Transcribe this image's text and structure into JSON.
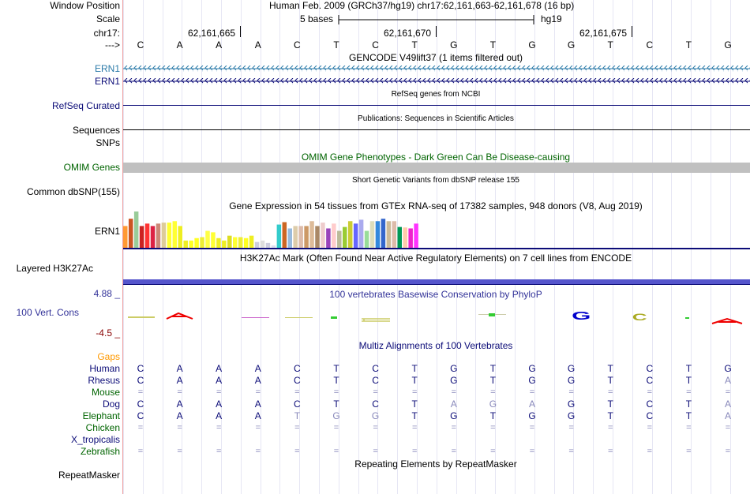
{
  "header": {
    "window_position_label": "Window Position",
    "window_position": "Human Feb. 2009 (GRCh37/hg19)   chr17:62,161,663-62,161,678 (16 bp)",
    "scale_label": "Scale",
    "scale_text": "5 bases",
    "assembly": "hg19",
    "chrom_label": "chr17:",
    "strand_label": "--->",
    "pos1": "62,161,665",
    "pos2": "62,161,670",
    "pos3": "62,161,675"
  },
  "bases": [
    "C",
    "A",
    "A",
    "A",
    "C",
    "T",
    "C",
    "T",
    "G",
    "T",
    "G",
    "G",
    "T",
    "C",
    "T",
    "G"
  ],
  "tracks": {
    "gencode_title": "GENCODE V49lift37 (1 items filtered out)",
    "ern1_a": "ERN1",
    "ern1_b": "ERN1",
    "refseq_title": "RefSeq genes from NCBI",
    "refseq_label": "RefSeq Curated",
    "pubs_title": "Publications: Sequences in Scientific Articles",
    "sequences_label": "Sequences",
    "snps_label": "SNPs",
    "omim_title": "OMIM Gene Phenotypes - Dark Green Can Be Disease-causing",
    "omim_label": "OMIM Genes",
    "dbsnp_title": "Short Genetic Variants from dbSNP release 155",
    "dbsnp_label": "Common dbSNP(155)",
    "gtex_title": "Gene Expression in 54 tissues from GTEx RNA-seq of 17382 samples, 948 donors (V8, Aug 2019)",
    "gtex_label": "ERN1",
    "h3k_title": "H3K27Ac Mark (Often Found Near Active Regulatory Elements) on 7 cell lines from ENCODE",
    "h3k_label": "Layered H3K27Ac",
    "cons_max": "4.88 _",
    "cons_label": "100 Vert. Cons",
    "cons_min": "-4.5 _",
    "cons_title": "100 vertebrates Basewise Conservation by PhyloP",
    "multiz_title": "Multiz Alignments of 100 Vertebrates",
    "gaps_label": "Gaps",
    "repeat_title": "Repeating Elements by RepeatMasker",
    "repeat_label": "RepeatMasker"
  },
  "gtex": {
    "values": [
      0.45,
      0.6,
      0.75,
      0.45,
      0.5,
      0.45,
      0.5,
      0.52,
      0.52,
      0.55,
      0.45,
      0.15,
      0.15,
      0.2,
      0.22,
      0.35,
      0.32,
      0.2,
      0.15,
      0.25,
      0.22,
      0.22,
      0.2,
      0.25,
      0.12,
      0.15,
      0.1,
      0.05,
      0.48,
      0.53,
      0.4,
      0.45,
      0.45,
      0.45,
      0.55,
      0.45,
      0.52,
      0.4,
      0.5,
      0.35,
      0.43,
      0.55,
      0.5,
      0.58,
      0.35,
      0.55,
      0.55,
      0.6,
      0.55,
      0.55,
      0.43,
      0.42,
      0.4,
      0.5
    ],
    "colors": [
      "#ff9933",
      "#cc5522",
      "#99cc99",
      "#cc2222",
      "#ff3333",
      "#dd2244",
      "#cc8877",
      "#ddcc99",
      "#ffff33",
      "#ffff33",
      "#eeee22",
      "#eeee22",
      "#ffff22",
      "#ffff22",
      "#eeee33",
      "#ffff44",
      "#ffff33",
      "#eeee22",
      "#eeee22",
      "#dddd22",
      "#ffff33",
      "#eeee33",
      "#ffff22",
      "#eeee22",
      "#ccccdd",
      "#dddddd",
      "#ccccdd",
      "#ddddee",
      "#33cccc",
      "#cc6622",
      "#99bbdd",
      "#ddccaa",
      "#ddbbaa",
      "#cc9966",
      "#ddbb99",
      "#aa8866",
      "#eecccc",
      "#9944bb",
      "#ffcccc",
      "#bbbb99",
      "#99cc33",
      "#cccc33",
      "#6666ff",
      "#aaaaee",
      "#99dd99",
      "#ddddbb",
      "#3388dd",
      "#3366cc",
      "#ccbb99",
      "#ddbbaa",
      "#009955",
      "#ffccaa",
      "#ee22cc",
      "#ff33ff"
    ]
  },
  "multiz": {
    "species": [
      {
        "name": "Gaps",
        "color": "#ff9900"
      },
      {
        "name": "Human",
        "color": "#0c0c78",
        "bases": [
          "C",
          "A",
          "A",
          "A",
          "C",
          "T",
          "C",
          "T",
          "G",
          "T",
          "G",
          "G",
          "T",
          "C",
          "T",
          "G"
        ]
      },
      {
        "name": "Rhesus",
        "color": "#0c0c78",
        "bases": [
          "C",
          "A",
          "A",
          "A",
          "C",
          "T",
          "C",
          "T",
          "G",
          "T",
          "G",
          "G",
          "T",
          "C",
          "T",
          "A"
        ]
      },
      {
        "name": "Mouse",
        "color": "#006400",
        "bases": [
          "=",
          "=",
          "=",
          "=",
          "=",
          "=",
          "=",
          "=",
          "=",
          "=",
          "=",
          "=",
          "=",
          "=",
          "=",
          "="
        ]
      },
      {
        "name": "Dog",
        "color": "#0c0c78",
        "bases": [
          "C",
          "A",
          "A",
          "A",
          "C",
          "T",
          "C",
          "T",
          "A",
          "G",
          "A",
          "G",
          "T",
          "C",
          "T",
          "A"
        ]
      },
      {
        "name": "Elephant",
        "color": "#006400",
        "bases": [
          "C",
          "A",
          "A",
          "A",
          "T",
          "G",
          "G",
          "T",
          "G",
          "T",
          "G",
          "G",
          "T",
          "C",
          "T",
          "A"
        ]
      },
      {
        "name": "Chicken",
        "color": "#006400",
        "bases": [
          "=",
          "=",
          "=",
          "=",
          "=",
          "=",
          "=",
          "=",
          "=",
          "=",
          "=",
          "=",
          "=",
          "=",
          "=",
          "="
        ]
      },
      {
        "name": "X_tropicalis",
        "color": "#0c0c78"
      },
      {
        "name": "Zebrafish",
        "color": "#006400",
        "bases": [
          "=",
          "=",
          "=",
          "=",
          "=",
          "=",
          "=",
          "=",
          "=",
          "=",
          "=",
          "=",
          "=",
          "=",
          "=",
          "="
        ]
      }
    ]
  },
  "colors": {
    "navy": "#0c0c78",
    "green": "#006400",
    "orange": "#ff9900",
    "grid": "#e6e6f4",
    "omim": "#c0c0c0",
    "h3k": "#5555cc",
    "conslabel": "#333399"
  }
}
